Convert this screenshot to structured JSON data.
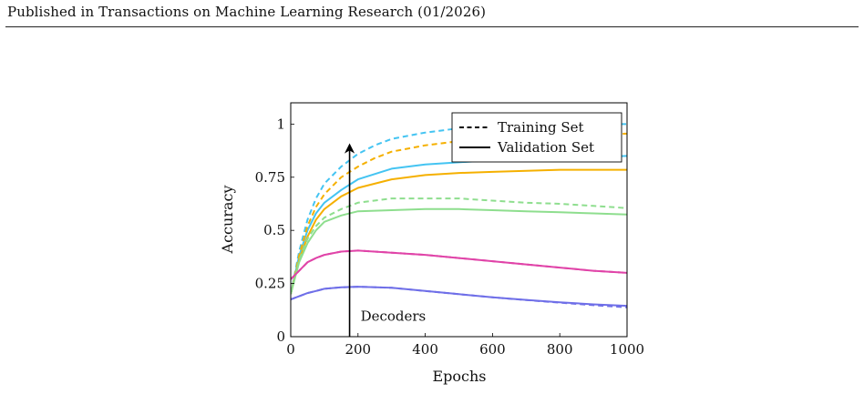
{
  "page": {
    "header": "Published in Transactions on Machine Learning Research (01/2026)"
  },
  "chart_data": {
    "type": "line",
    "title": "",
    "xlabel": "Epochs",
    "ylabel": "Accuracy",
    "xlim": [
      0,
      1000
    ],
    "ylim": [
      0,
      1.1
    ],
    "xticks": [
      0,
      200,
      400,
      600,
      800,
      1000
    ],
    "yticks": [
      0,
      0.25,
      0.5,
      0.75,
      1
    ],
    "xtick_labels": [
      "0",
      "200",
      "400",
      "600",
      "800",
      "1000"
    ],
    "ytick_labels": [
      "0",
      "0.25",
      "0.5",
      "0.75",
      "1"
    ],
    "grid": false,
    "legend": {
      "position": "top-right",
      "entries": [
        {
          "label": "Training Set",
          "style": "dashed",
          "color": "#000000"
        },
        {
          "label": "Validation Set",
          "style": "solid",
          "color": "#000000"
        }
      ]
    },
    "annotation": {
      "text": "Decoders",
      "x": 175,
      "y_from": 0,
      "y_to": 0.9,
      "direction": "up"
    },
    "series": [
      {
        "split": "train",
        "color": "#44c4f2",
        "x": [
          0,
          25,
          50,
          75,
          100,
          150,
          200,
          250,
          300,
          400,
          500,
          600,
          700,
          800,
          900,
          1000
        ],
        "y": [
          0.2,
          0.4,
          0.55,
          0.65,
          0.72,
          0.8,
          0.86,
          0.9,
          0.93,
          0.96,
          0.98,
          0.985,
          0.99,
          0.995,
          1.0,
          1.0
        ]
      },
      {
        "split": "val",
        "color": "#44c4f2",
        "x": [
          0,
          25,
          50,
          75,
          100,
          150,
          200,
          300,
          400,
          500,
          600,
          700,
          800,
          900,
          1000
        ],
        "y": [
          0.2,
          0.38,
          0.5,
          0.58,
          0.63,
          0.69,
          0.74,
          0.79,
          0.81,
          0.82,
          0.83,
          0.835,
          0.84,
          0.845,
          0.85
        ]
      },
      {
        "split": "train",
        "color": "#f5b000",
        "x": [
          0,
          25,
          50,
          75,
          100,
          150,
          200,
          250,
          300,
          400,
          500,
          600,
          700,
          800,
          900,
          1000
        ],
        "y": [
          0.2,
          0.38,
          0.52,
          0.61,
          0.67,
          0.75,
          0.8,
          0.84,
          0.87,
          0.9,
          0.92,
          0.93,
          0.94,
          0.945,
          0.95,
          0.955
        ]
      },
      {
        "split": "val",
        "color": "#f5b000",
        "x": [
          0,
          25,
          50,
          75,
          100,
          150,
          200,
          300,
          400,
          500,
          600,
          700,
          800,
          900,
          1000
        ],
        "y": [
          0.2,
          0.36,
          0.47,
          0.55,
          0.6,
          0.66,
          0.7,
          0.74,
          0.76,
          0.77,
          0.775,
          0.78,
          0.785,
          0.785,
          0.785
        ]
      },
      {
        "split": "train",
        "color": "#8ede8e",
        "x": [
          0,
          25,
          50,
          75,
          100,
          150,
          200,
          300,
          400,
          500,
          600,
          700,
          800,
          900,
          1000
        ],
        "y": [
          0.2,
          0.36,
          0.46,
          0.52,
          0.56,
          0.6,
          0.63,
          0.65,
          0.65,
          0.65,
          0.64,
          0.63,
          0.625,
          0.615,
          0.605
        ]
      },
      {
        "split": "val",
        "color": "#8ede8e",
        "x": [
          0,
          25,
          50,
          75,
          100,
          150,
          200,
          300,
          400,
          500,
          600,
          700,
          800,
          900,
          1000
        ],
        "y": [
          0.2,
          0.35,
          0.44,
          0.5,
          0.54,
          0.57,
          0.59,
          0.595,
          0.6,
          0.6,
          0.595,
          0.59,
          0.585,
          0.58,
          0.575
        ]
      },
      {
        "split": "train",
        "color": "#e044a8",
        "x": [
          0,
          25,
          50,
          75,
          100,
          150,
          200,
          300,
          400,
          500,
          600,
          700,
          800,
          900,
          1000
        ],
        "y": [
          0.27,
          0.31,
          0.35,
          0.37,
          0.385,
          0.4,
          0.405,
          0.395,
          0.385,
          0.37,
          0.355,
          0.34,
          0.325,
          0.31,
          0.3
        ]
      },
      {
        "split": "val",
        "color": "#e044a8",
        "x": [
          0,
          25,
          50,
          75,
          100,
          150,
          200,
          300,
          400,
          500,
          600,
          700,
          800,
          900,
          1000
        ],
        "y": [
          0.27,
          0.31,
          0.35,
          0.37,
          0.385,
          0.4,
          0.405,
          0.395,
          0.385,
          0.37,
          0.355,
          0.34,
          0.325,
          0.31,
          0.3
        ]
      },
      {
        "split": "train",
        "color": "#6f6fe8",
        "x": [
          0,
          25,
          50,
          75,
          100,
          150,
          200,
          300,
          400,
          500,
          600,
          700,
          800,
          900,
          1000
        ],
        "y": [
          0.175,
          0.19,
          0.205,
          0.215,
          0.225,
          0.232,
          0.235,
          0.23,
          0.215,
          0.2,
          0.185,
          0.172,
          0.16,
          0.148,
          0.138
        ]
      },
      {
        "split": "val",
        "color": "#6f6fe8",
        "x": [
          0,
          25,
          50,
          75,
          100,
          150,
          200,
          300,
          400,
          500,
          600,
          700,
          800,
          900,
          1000
        ],
        "y": [
          0.175,
          0.19,
          0.205,
          0.215,
          0.225,
          0.232,
          0.235,
          0.23,
          0.215,
          0.2,
          0.185,
          0.173,
          0.162,
          0.152,
          0.145
        ]
      }
    ]
  }
}
